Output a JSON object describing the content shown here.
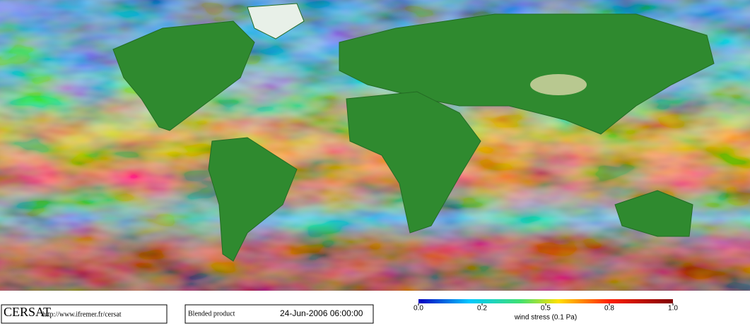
{
  "footer": {
    "logo": "CERSAT",
    "url": "http://www.ifremer.fr/cersat",
    "product": "Blended product",
    "timestamp": "24-Jun-2006 06:00:00"
  },
  "colorbar": {
    "label": "wind stress (0.1 Pa)",
    "ticks": [
      {
        "value": 0,
        "label": "0.0"
      },
      0.2,
      0.5,
      0.8,
      {
        "value": 1,
        "label": "1.0"
      }
    ]
  }
}
